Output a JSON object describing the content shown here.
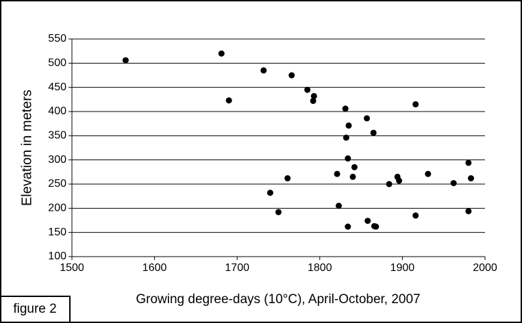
{
  "chart_data": {
    "type": "scatter",
    "x_label": "Growing degree-days (10°C), April-October, 2007",
    "y_label": "Elevation in meters",
    "annotation": "figure 2",
    "series": [
      {
        "color": "#000000",
        "x": [
          1565,
          1681,
          1690,
          1732,
          1766,
          1785,
          1793,
          1792,
          1831,
          1857,
          1835,
          1865,
          1832,
          1834,
          1842,
          1821,
          1840,
          1761,
          1740,
          1884,
          1894,
          1896,
          1931,
          1962,
          1980,
          1983,
          1916,
          1750,
          1823,
          1858,
          1866,
          1868,
          1834,
          1916,
          1980
        ],
        "values": [
          506,
          520,
          423,
          485,
          475,
          445,
          432,
          422,
          406,
          386,
          371,
          356,
          346,
          303,
          285,
          271,
          265,
          262,
          232,
          250,
          265,
          257,
          271,
          252,
          294,
          262,
          415,
          192,
          205,
          174,
          163,
          162,
          162,
          185,
          194
        ]
      }
    ],
    "xlim": [
      1500,
      2000
    ],
    "xticks": [
      1500,
      1600,
      1700,
      1800,
      1900,
      2000
    ],
    "ylim": [
      100,
      550
    ],
    "yticks": [
      100,
      150,
      200,
      250,
      300,
      350,
      400,
      450,
      500,
      550
    ],
    "grid": true
  }
}
